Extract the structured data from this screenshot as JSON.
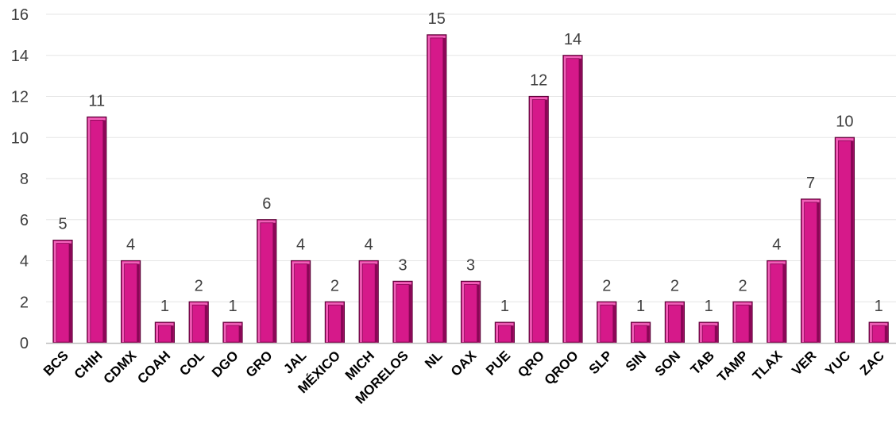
{
  "chart_data": {
    "type": "bar",
    "title": "",
    "xlabel": "",
    "ylabel": "",
    "ylim": [
      0,
      16
    ],
    "yticks": [
      0,
      2,
      4,
      6,
      8,
      10,
      12,
      14,
      16
    ],
    "grid": true,
    "categories": [
      "BCS",
      "CHIH",
      "CDMX",
      "COAH",
      "COL",
      "DGO",
      "GRO",
      "JAL",
      "MÉXICO",
      "MICH",
      "MORELOS",
      "NL",
      "OAX",
      "PUE",
      "QRO",
      "QROO",
      "SLP",
      "SIN",
      "SON",
      "TAB",
      "TAMP",
      "TLAX",
      "VER",
      "YUC",
      "ZAC"
    ],
    "values": [
      5,
      11,
      4,
      1,
      2,
      1,
      6,
      4,
      2,
      4,
      3,
      15,
      3,
      1,
      12,
      14,
      2,
      1,
      2,
      1,
      2,
      4,
      7,
      10,
      1
    ],
    "colors": {
      "bar_face": "#D6198A",
      "bar_edge": "#5E0038",
      "bar_highlight": "#F060B8",
      "bar_shadow": "#8A0756",
      "grid": "#E6E6E6",
      "axis": "#BFBFBF",
      "tick_text": "#404040",
      "category_text": "#000000"
    }
  }
}
